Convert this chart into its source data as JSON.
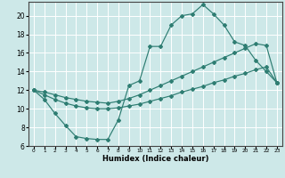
{
  "xlabel": "Humidex (Indice chaleur)",
  "xlim": [
    -0.5,
    23.5
  ],
  "ylim": [
    6,
    21.5
  ],
  "xticks": [
    0,
    1,
    2,
    3,
    4,
    5,
    6,
    7,
    8,
    9,
    10,
    11,
    12,
    13,
    14,
    15,
    16,
    17,
    18,
    19,
    20,
    21,
    22,
    23
  ],
  "yticks": [
    6,
    8,
    10,
    12,
    14,
    16,
    18,
    20
  ],
  "background_color": "#cde8e8",
  "grid_color": "#ffffff",
  "line_color": "#2e7d72",
  "line1_x": [
    0,
    1,
    2,
    3,
    4,
    5,
    6,
    7,
    8,
    9,
    10,
    11,
    12,
    13,
    14,
    15,
    16,
    17,
    18,
    19,
    20,
    21,
    22,
    23
  ],
  "line1_y": [
    12.0,
    11.0,
    9.5,
    8.2,
    7.0,
    6.8,
    6.7,
    6.7,
    8.8,
    12.5,
    13.0,
    16.7,
    16.7,
    19.0,
    20.0,
    20.2,
    21.2,
    20.2,
    19.0,
    17.2,
    16.8,
    15.2,
    14.0,
    12.8
  ],
  "line2_x": [
    0,
    1,
    2,
    3,
    4,
    5,
    6,
    7,
    8,
    9,
    10,
    11,
    12,
    13,
    14,
    15,
    16,
    17,
    18,
    19,
    20,
    21,
    22,
    23
  ],
  "line2_y": [
    12.0,
    11.8,
    11.5,
    11.2,
    11.0,
    10.8,
    10.7,
    10.6,
    10.8,
    11.1,
    11.5,
    12.0,
    12.5,
    13.0,
    13.5,
    14.0,
    14.5,
    15.0,
    15.5,
    16.0,
    16.5,
    17.0,
    16.8,
    12.8
  ],
  "line3_x": [
    0,
    1,
    2,
    3,
    4,
    5,
    6,
    7,
    8,
    9,
    10,
    11,
    12,
    13,
    14,
    15,
    16,
    17,
    18,
    19,
    20,
    21,
    22,
    23
  ],
  "line3_y": [
    12.0,
    11.5,
    11.0,
    10.6,
    10.3,
    10.1,
    10.0,
    10.0,
    10.1,
    10.3,
    10.5,
    10.8,
    11.1,
    11.4,
    11.8,
    12.1,
    12.4,
    12.8,
    13.1,
    13.5,
    13.8,
    14.2,
    14.5,
    12.8
  ]
}
